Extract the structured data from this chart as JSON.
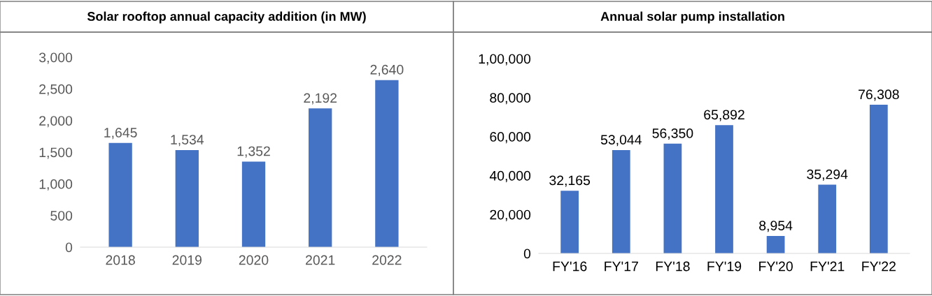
{
  "chart_data": [
    {
      "type": "bar",
      "title": "Solar rooftop annual capacity addition (in MW)",
      "categories": [
        "2018",
        "2019",
        "2020",
        "2021",
        "2022"
      ],
      "series": [
        {
          "color": "#4472c4",
          "values": [
            1645,
            1534,
            1352,
            2192,
            2640
          ],
          "value_labels": [
            "1,645",
            "1,534",
            "1,352",
            "2,192",
            "2,640"
          ]
        }
      ],
      "ylim": [
        0,
        3000
      ],
      "yticks": [
        0,
        500,
        {
          "value": 1000,
          "label": "1,000"
        },
        {
          "value": 1500,
          "label": "1,500"
        },
        {
          "value": 2000,
          "label": "2,000"
        },
        {
          "value": 2500,
          "label": "2,500"
        },
        {
          "value": 3000,
          "label": "3,000"
        }
      ],
      "grid": false,
      "legend": false
    },
    {
      "type": "bar",
      "title": "Annual solar pump installation",
      "categories": [
        "FY'16",
        "FY'17",
        "FY'18",
        "FY'19",
        "FY'20",
        "FY'21",
        "FY'22"
      ],
      "series": [
        {
          "color": "#4472c4",
          "values": [
            32165,
            53044,
            56350,
            65892,
            8954,
            35294,
            76308
          ],
          "value_labels": [
            "32,165",
            "53,044",
            "56,350",
            "65,892",
            "8,954",
            "35,294",
            "76,308"
          ]
        }
      ],
      "ylim": [
        0,
        100000
      ],
      "yticks": [
        0,
        {
          "value": 20000,
          "label": "20,000"
        },
        {
          "value": 40000,
          "label": "40,000"
        },
        {
          "value": 60000,
          "label": "60,000"
        },
        {
          "value": 80000,
          "label": "80,000"
        },
        {
          "value": 100000,
          "label": "1,00,000"
        }
      ],
      "grid": false,
      "legend": false
    }
  ]
}
